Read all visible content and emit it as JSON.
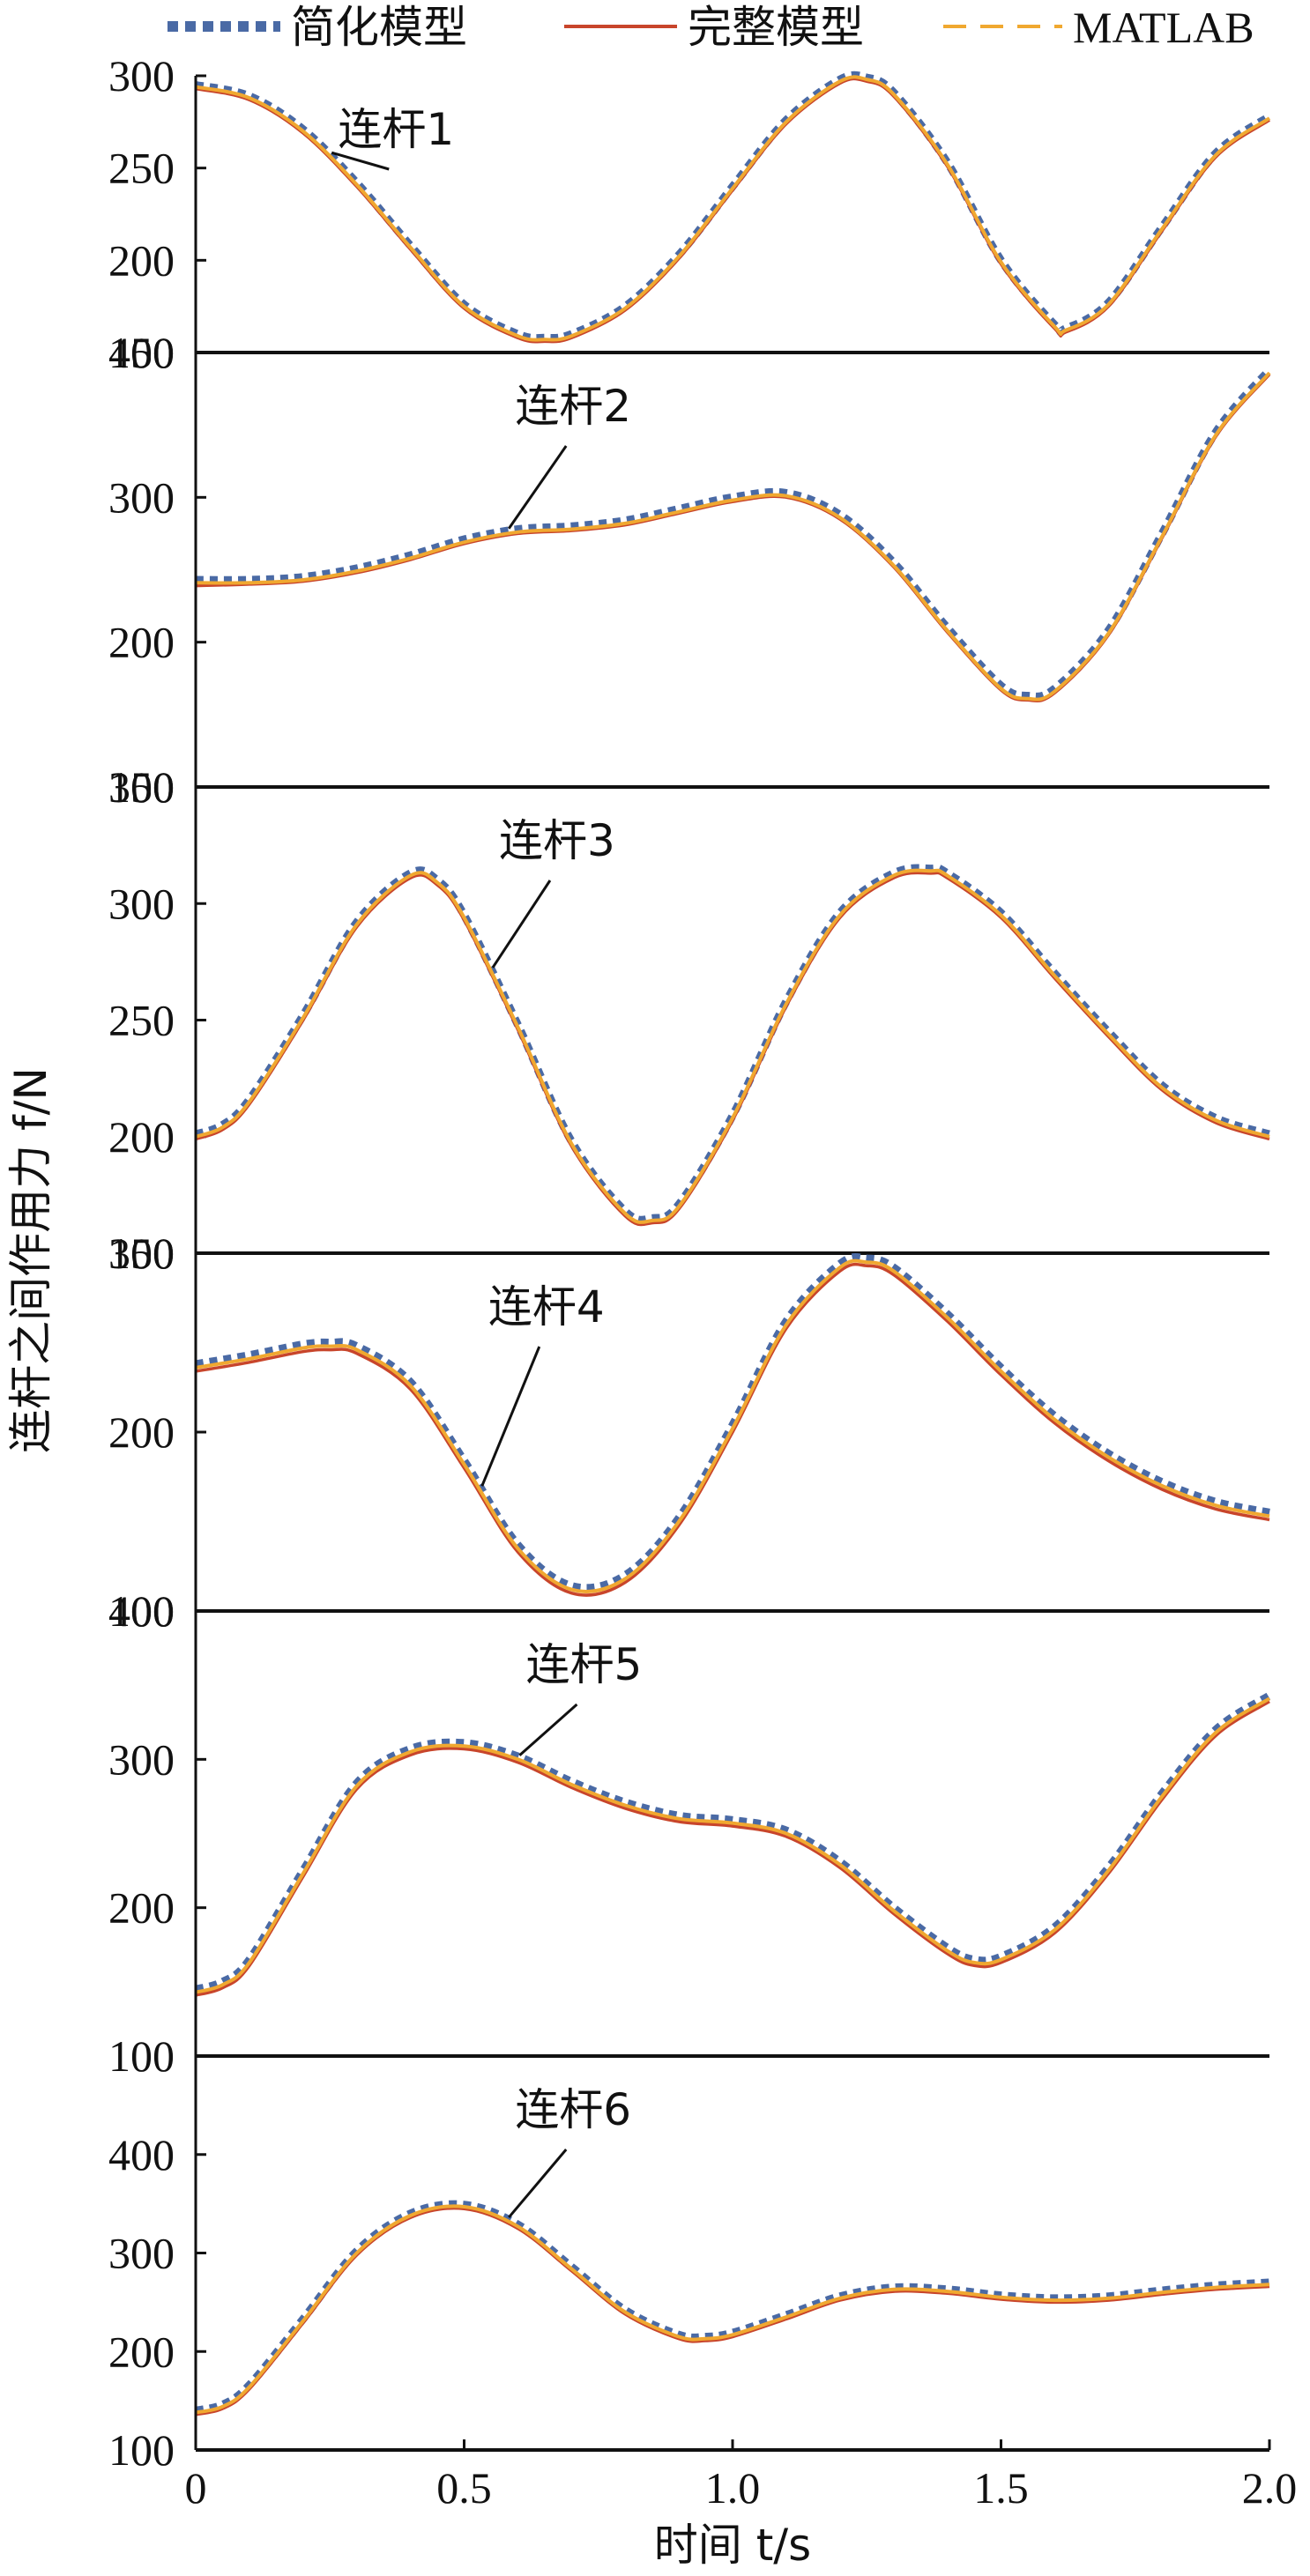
{
  "chart_data": {
    "type": "line",
    "xlabel": "时间 t/s",
    "ylabel": "连杆之间作用力 f/N",
    "xlim": [
      0,
      2.0
    ],
    "x_ticks": [
      "0",
      "0.5",
      "1.0",
      "1.5",
      "2.0"
    ],
    "legend": {
      "placement": "top",
      "entries": [
        {
          "name": "简化模型",
          "style": "dotted",
          "color": "#4a6aa5"
        },
        {
          "name": "完整模型",
          "style": "solid",
          "color": "#c8452b"
        },
        {
          "name": "MATLAB",
          "style": "dashed",
          "color": "#f0a830"
        }
      ]
    },
    "panels": [
      {
        "label": "连杆1",
        "ylim": [
          150,
          300
        ],
        "yticks": [
          150,
          200,
          250,
          300
        ],
        "x": [
          0,
          0.1,
          0.2,
          0.3,
          0.4,
          0.5,
          0.6,
          0.65,
          0.7,
          0.8,
          0.9,
          1.0,
          1.1,
          1.2,
          1.25,
          1.3,
          1.4,
          1.5,
          1.6,
          1.62,
          1.7,
          1.8,
          1.9,
          2.0
        ],
        "series": [
          {
            "name": "简化模型",
            "values": [
              295,
              289,
              271,
              242,
              208,
              176,
              160,
              158,
              160,
              175,
              203,
              240,
              276,
              298,
              299,
              291,
              253,
              200,
              165,
              163,
              177,
              218,
              258,
              278
            ]
          },
          {
            "name": "完整模型",
            "values": [
              293,
              287,
              269,
              240,
              206,
              174,
              158,
              156,
              158,
              173,
              201,
              238,
              274,
              296,
              297,
              289,
              251,
              198,
              163,
              161,
              175,
              216,
              256,
              276
            ]
          },
          {
            "name": "MATLAB",
            "values": [
              294,
              288,
              270,
              241,
              207,
              175,
              159,
              157,
              159,
              174,
              202,
              239,
              275,
              297,
              298,
              290,
              252,
              199,
              164,
              162,
              176,
              217,
              257,
              277
            ]
          }
        ],
        "annotation_x": 0.25
      },
      {
        "label": "连杆2",
        "ylim": [
          100,
          400
        ],
        "yticks": [
          100,
          200,
          300,
          400
        ],
        "x": [
          0,
          0.1,
          0.2,
          0.3,
          0.4,
          0.5,
          0.6,
          0.7,
          0.8,
          0.9,
          1.0,
          1.1,
          1.2,
          1.3,
          1.4,
          1.5,
          1.55,
          1.6,
          1.7,
          1.8,
          1.9,
          2.0
        ],
        "series": [
          {
            "name": "简化模型",
            "values": [
              243,
              243,
              245,
              251,
              260,
              271,
              278,
              280,
              284,
              292,
              300,
              303,
              288,
              255,
              210,
              170,
              163,
              168,
              208,
              275,
              345,
              388
            ]
          },
          {
            "name": "完整模型",
            "values": [
              239,
              240,
              242,
              248,
              257,
              268,
              275,
              277,
              281,
              289,
              297,
              300,
              285,
              252,
              207,
              167,
              160,
              165,
              205,
              272,
              342,
              385
            ]
          },
          {
            "name": "MATLAB",
            "values": [
              241,
              241,
              243,
              249,
              258,
              269,
              276,
              278,
              282,
              290,
              298,
              301,
              286,
              253,
              208,
              168,
              161,
              166,
              206,
              273,
              343,
              386
            ]
          }
        ],
        "annotation_x": 0.58
      },
      {
        "label": "连杆3",
        "ylim": [
          150,
          350
        ],
        "yticks": [
          150,
          200,
          250,
          300,
          350
        ],
        "x": [
          0,
          0.05,
          0.1,
          0.2,
          0.3,
          0.4,
          0.45,
          0.5,
          0.6,
          0.7,
          0.8,
          0.85,
          0.9,
          1.0,
          1.1,
          1.2,
          1.3,
          1.37,
          1.4,
          1.5,
          1.6,
          1.7,
          1.8,
          1.9,
          2.0
        ],
        "series": [
          {
            "name": "简化模型",
            "values": [
              201,
              205,
              216,
              252,
              292,
              313,
              310,
              295,
              248,
              198,
              168,
              165,
              171,
              209,
              258,
              296,
              313,
              315,
              313,
              296,
              270,
              245,
              222,
              208,
              201
            ]
          },
          {
            "name": "完整模型",
            "values": [
              199,
              203,
              214,
              250,
              290,
              311,
              308,
              293,
              246,
              196,
              166,
              163,
              169,
              207,
              256,
              294,
              311,
              313,
              311,
              294,
              268,
              243,
              220,
              206,
              199
            ]
          },
          {
            "name": "MATLAB",
            "values": [
              200,
              204,
              215,
              251,
              291,
              312,
              309,
              294,
              247,
              197,
              167,
              164,
              170,
              208,
              257,
              295,
              312,
              314,
              312,
              295,
              269,
              244,
              221,
              207,
              200
            ]
          }
        ],
        "annotation_x": 0.55
      },
      {
        "label": "连杆4",
        "ylim": [
          100,
          300
        ],
        "yticks": [
          100,
          200,
          300
        ],
        "x": [
          0,
          0.1,
          0.2,
          0.25,
          0.3,
          0.4,
          0.5,
          0.6,
          0.7,
          0.8,
          0.9,
          1.0,
          1.1,
          1.2,
          1.25,
          1.3,
          1.4,
          1.5,
          1.6,
          1.7,
          1.8,
          1.9,
          2.0
        ],
        "series": [
          {
            "name": "简化模型",
            "values": [
              238,
              243,
              249,
              250,
              248,
              228,
              184,
              137,
              114,
              120,
              152,
              204,
              262,
              294,
              297,
              292,
              266,
              236,
              209,
              188,
              172,
              161,
              155
            ]
          },
          {
            "name": "完整模型",
            "values": [
              234,
              239,
              245,
              246,
              244,
              224,
              180,
              133,
              110,
              116,
              148,
              200,
              258,
              290,
              293,
              288,
              262,
              232,
              205,
              184,
              168,
              157,
              151
            ]
          },
          {
            "name": "MATLAB",
            "values": [
              236,
              241,
              247,
              248,
              246,
              226,
              182,
              135,
              112,
              118,
              150,
              202,
              260,
              292,
              295,
              290,
              264,
              234,
              207,
              186,
              170,
              159,
              153
            ]
          }
        ],
        "annotation_x": 0.53
      },
      {
        "label": "连杆5",
        "ylim": [
          100,
          400
        ],
        "yticks": [
          100,
          200,
          300,
          400
        ],
        "x": [
          0,
          0.05,
          0.1,
          0.2,
          0.3,
          0.4,
          0.5,
          0.6,
          0.7,
          0.8,
          0.9,
          1.0,
          1.1,
          1.2,
          1.3,
          1.4,
          1.45,
          1.5,
          1.6,
          1.7,
          1.8,
          1.9,
          2.0
        ],
        "series": [
          {
            "name": "简化模型",
            "values": [
              145,
              150,
              165,
              225,
              284,
              307,
              311,
              302,
              285,
              271,
              262,
              259,
              252,
              231,
              200,
              173,
              165,
              167,
              187,
              227,
              277,
              320,
              343
            ]
          },
          {
            "name": "完整模型",
            "values": [
              141,
              146,
              161,
              221,
              280,
              303,
              307,
              298,
              281,
              267,
              258,
              255,
              248,
              227,
              196,
              169,
              161,
              163,
              183,
              223,
              273,
              316,
              339
            ]
          },
          {
            "name": "MATLAB",
            "values": [
              143,
              148,
              163,
              223,
              282,
              305,
              309,
              300,
              283,
              269,
              260,
              257,
              250,
              229,
              198,
              171,
              163,
              165,
              185,
              225,
              275,
              318,
              341
            ]
          }
        ],
        "annotation_x": 0.6
      },
      {
        "label": "连杆6",
        "ylim": [
          100,
          500
        ],
        "yticks": [
          100,
          200,
          300,
          400
        ],
        "x": [
          0,
          0.05,
          0.1,
          0.2,
          0.3,
          0.4,
          0.5,
          0.6,
          0.7,
          0.8,
          0.9,
          0.95,
          1.0,
          1.1,
          1.2,
          1.3,
          1.4,
          1.5,
          1.6,
          1.7,
          1.8,
          1.9,
          2.0
        ],
        "series": [
          {
            "name": "简化模型",
            "values": [
              140,
              146,
              166,
              233,
              302,
              340,
              349,
              329,
              286,
              242,
              217,
              215,
              219,
              237,
              256,
              265,
              263,
              257,
              254,
              256,
              262,
              267,
              270
            ]
          },
          {
            "name": "完整模型",
            "values": [
              136,
              142,
              162,
              229,
              298,
              336,
              345,
              325,
              282,
              238,
              213,
              211,
              215,
              233,
              252,
              261,
              259,
              253,
              250,
              252,
              258,
              263,
              266
            ]
          },
          {
            "name": "MATLAB",
            "values": [
              138,
              144,
              164,
              231,
              300,
              338,
              347,
              327,
              284,
              240,
              215,
              213,
              217,
              235,
              254,
              263,
              261,
              255,
              252,
              254,
              260,
              265,
              268
            ]
          }
        ],
        "annotation_x": 0.58
      }
    ]
  }
}
